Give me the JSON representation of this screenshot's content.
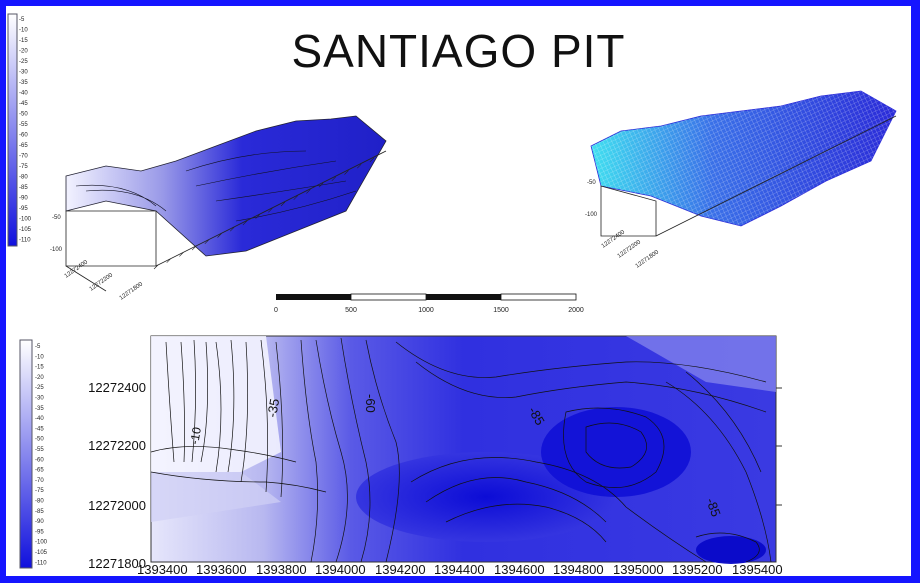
{
  "title": "SANTIAGO PIT",
  "colors": {
    "frame": "#1515ff",
    "high": "#ffffff",
    "low": "#1010dd",
    "wire": "#2a2ad8",
    "wire_light": "#40e0f0"
  },
  "legend_top": {
    "values": [
      "-5",
      "-10",
      "-15",
      "-20",
      "-25",
      "-30",
      "-35",
      "-40",
      "-45",
      "-50",
      "-55",
      "-60",
      "-65",
      "-70",
      "-75",
      "-80",
      "-85",
      "-90",
      "-95",
      "-100",
      "-105",
      "-110"
    ]
  },
  "legend_main": {
    "values": [
      "-5",
      "-10",
      "-15",
      "-20",
      "-25",
      "-30",
      "-35",
      "-40",
      "-45",
      "-50",
      "-55",
      "-60",
      "-65",
      "-70",
      "-75",
      "-80",
      "-85",
      "-90",
      "-95",
      "-100",
      "-105",
      "-110"
    ]
  },
  "scale_bar": {
    "labels": [
      "0",
      "500",
      "1000",
      "1500",
      "2000"
    ]
  },
  "map": {
    "y_ticks": [
      "12272400",
      "12272200",
      "12272000",
      "12271800"
    ],
    "x_ticks": [
      "1393400",
      "1393600",
      "1393800",
      "1394000",
      "1394200",
      "1394400",
      "1394600",
      "1394800",
      "1395000",
      "1395200",
      "1395400"
    ],
    "contour_labels": [
      "-10",
      "-35",
      "-60",
      "-85",
      "-85"
    ]
  },
  "surface_solid": {
    "axis_labels": [
      "-50",
      "-100",
      "12272400",
      "12272200",
      "12271800"
    ]
  },
  "surface_wire": {
    "axis_labels": [
      "-50",
      "-100",
      "12272400",
      "12272200",
      "12271800"
    ]
  }
}
